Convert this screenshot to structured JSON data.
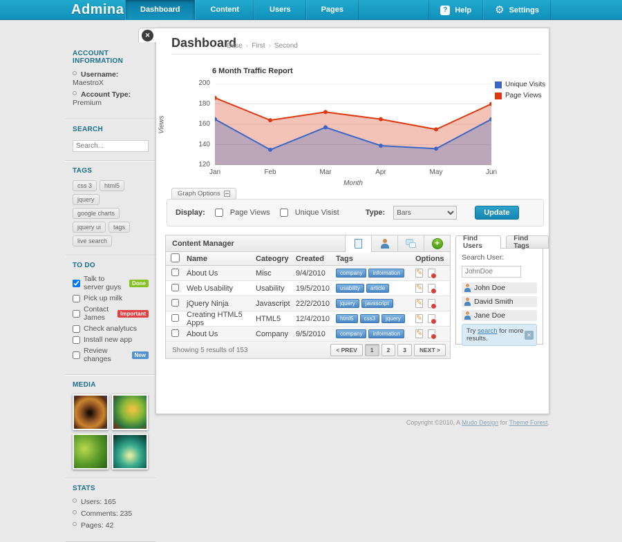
{
  "nav": {
    "logo": "Admina",
    "tabs": [
      {
        "label": "Dashboard",
        "active": true
      },
      {
        "label": "Content",
        "active": false
      },
      {
        "label": "Users",
        "active": false
      },
      {
        "label": "Pages",
        "active": false
      }
    ],
    "help_label": "Help",
    "settings_label": "Settings"
  },
  "sidebar": {
    "account": {
      "heading": "ACCOUNT INFORMATION",
      "items": [
        {
          "label": "Username:",
          "value": "MaestroX"
        },
        {
          "label": "Account Type:",
          "value": "Premium"
        }
      ]
    },
    "search": {
      "heading": "SEARCH",
      "placeholder": "Search..."
    },
    "tags": {
      "heading": "TAGS",
      "items": [
        "css 3",
        "html5",
        "jquery",
        "google charts",
        "jquery ui",
        "tags",
        "live search"
      ]
    },
    "todo": {
      "heading": "TO DO",
      "items": [
        {
          "label": "Talk to server guys",
          "checked": true,
          "badge": "Done",
          "badge_color": "#84c11e"
        },
        {
          "label": "Pick up milk",
          "checked": false
        },
        {
          "label": "Contact James",
          "checked": false,
          "badge": "Important",
          "badge_color": "#e24141"
        },
        {
          "label": "Check analytucs",
          "checked": false
        },
        {
          "label": "Install new app",
          "checked": false
        },
        {
          "label": "Review changes",
          "checked": false,
          "badge": "New",
          "badge_color": "#5291d2"
        }
      ]
    },
    "media": {
      "heading": "MEDIA"
    },
    "stats": {
      "heading": "STATS",
      "items": [
        {
          "label": "Users",
          "value": "165"
        },
        {
          "label": "Comments",
          "value": "235"
        },
        {
          "label": "Pages",
          "value": "42"
        }
      ]
    }
  },
  "main": {
    "title": "Dashboard",
    "breadcrumbs": [
      "Base",
      "First",
      "Second"
    ],
    "graph_options": {
      "tab_label": "Graph Options",
      "display_label": "Display:",
      "checkboxes": [
        {
          "label": "Page Views",
          "checked": false
        },
        {
          "label": "Unique Visist",
          "checked": false
        }
      ],
      "type_label": "Type:",
      "type_value": "Bars",
      "update_label": "Update"
    },
    "content_manager": {
      "title": "Content Manager",
      "header_icons": [
        "document-icon",
        "user-icon",
        "comments-icon",
        "add-icon"
      ],
      "columns": [
        "Name",
        "Cateogry",
        "Created",
        "Tags",
        "Options"
      ],
      "rows": [
        {
          "name": "About Us",
          "category": "Misc",
          "created": "9/4/2010",
          "tags": [
            "company",
            "information"
          ]
        },
        {
          "name": "Web Usability",
          "category": "Usability",
          "created": "19/5/2010",
          "tags": [
            "usability",
            "article"
          ]
        },
        {
          "name": "jQuery Ninja",
          "category": "Javascript",
          "created": "22/2/2010",
          "tags": [
            "jquery",
            "javascript"
          ]
        },
        {
          "name": "Creating HTML5 Apps",
          "category": "HTML5",
          "created": "12/4/2010",
          "tags": [
            "html5",
            "css3",
            "jquery"
          ]
        },
        {
          "name": "About Us",
          "category": "Company",
          "created": "9/5/2010",
          "tags": [
            "company",
            "information"
          ]
        }
      ],
      "footer": {
        "summary": "Showing 5 results of 153",
        "pagination": {
          "prev": "< PREV",
          "pages": [
            "1",
            "2",
            "3"
          ],
          "current": "1",
          "next": "NEXT >"
        }
      }
    },
    "find_panel": {
      "tabs": [
        {
          "label": "Find Users",
          "active": true
        },
        {
          "label": "Find Tags",
          "active": false
        }
      ],
      "search_label": "Search User:",
      "search_value": "JohnDoe",
      "users": [
        "John Doe",
        "David Smith",
        "Jane Doe"
      ],
      "alert": {
        "prefix": "Try ",
        "link": "search",
        "suffix": " for more results."
      }
    }
  },
  "chart_data": {
    "type": "area",
    "title": "6 Month Traffic Report",
    "categories": [
      "Jan",
      "Feb",
      "Mar",
      "Apr",
      "May",
      "Jun"
    ],
    "series": [
      {
        "name": "Unique Visits",
        "color": "#3B66C4",
        "values": [
          165,
          135,
          157,
          139,
          136,
          165
        ]
      },
      {
        "name": "Page Views",
        "color": "#DC3912",
        "values": [
          186,
          164,
          172,
          165,
          155,
          180
        ]
      }
    ],
    "xlabel": "Month",
    "ylabel": "Views",
    "ylim": [
      120,
      200
    ],
    "yticks": [
      120,
      140,
      160,
      180,
      200
    ],
    "grid": true,
    "legend_position": "right"
  },
  "footer": {
    "prefix": "Copyright ©2010, A ",
    "link1": "Mudo Design",
    "middle": " for ",
    "link2": "Theme Forest",
    "suffix": "."
  }
}
